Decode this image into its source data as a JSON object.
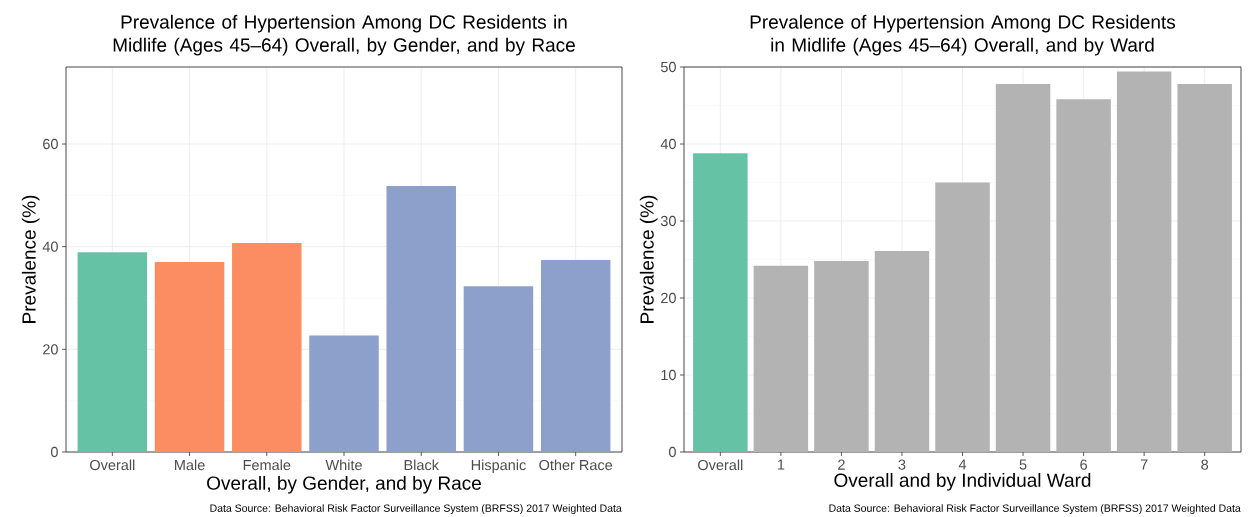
{
  "chart_data": [
    {
      "type": "bar",
      "title": "Prevalence of Hypertension Among DC Residents in Midlife (Ages 45–64) Overall, by Gender, and by Race",
      "xlabel": "Overall, by Gender, and by Race",
      "ylabel": "Prevalence (%)",
      "categories": [
        "Overall",
        "Male",
        "Female",
        "White",
        "Black",
        "Hispanic",
        "Other Race"
      ],
      "values": [
        38.9,
        37.0,
        40.7,
        22.7,
        51.8,
        32.3,
        37.4
      ],
      "colors": [
        "#66c2a5",
        "#fc8d62",
        "#fc8d62",
        "#8da0cb",
        "#8da0cb",
        "#8da0cb",
        "#8da0cb"
      ],
      "ylim": [
        0,
        75
      ],
      "yticks": [
        0,
        20,
        40,
        60
      ],
      "grid": true,
      "annotations": [
        "Data Source: Behavioral Risk Factor Surveillance System (BRFSS) 2017 Weighted Data"
      ]
    },
    {
      "type": "bar",
      "title": "Prevalence of Hypertension Among DC Residents in Midlife (Ages 45–64) Overall, and by Ward",
      "xlabel": "Overall and by Individual Ward",
      "ylabel": "Prevalence (%)",
      "categories": [
        "Overall",
        "1",
        "2",
        "3",
        "4",
        "5",
        "6",
        "7",
        "8"
      ],
      "values": [
        38.8,
        24.2,
        24.8,
        26.1,
        35.0,
        47.8,
        45.8,
        49.4,
        47.8
      ],
      "colors": [
        "#66c2a5",
        "#b3b3b3",
        "#b3b3b3",
        "#b3b3b3",
        "#b3b3b3",
        "#b3b3b3",
        "#b3b3b3",
        "#b3b3b3",
        "#b3b3b3"
      ],
      "ylim": [
        0,
        50
      ],
      "yticks": [
        0,
        10,
        20,
        30,
        40,
        50
      ],
      "grid": true,
      "annotations": [
        "Data Source: Behavioral Risk Factor Surveillance System (BRFSS) 2017 Weighted Data"
      ]
    }
  ]
}
